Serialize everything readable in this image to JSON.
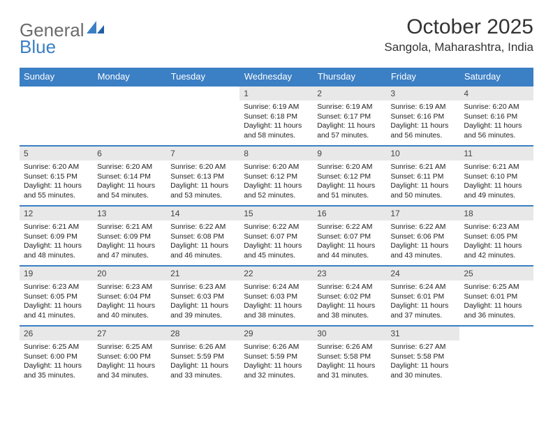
{
  "brand": {
    "part1": "General",
    "part2": "Blue"
  },
  "title": "October 2025",
  "location": "Sangola, Maharashtra, India",
  "colors": {
    "accent": "#3b7fc4",
    "header_bg": "#3b7fc4",
    "header_text": "#ffffff",
    "daynum_bg": "#e8e8e8",
    "row_border": "#3b7fc4",
    "text": "#222222",
    "background": "#ffffff"
  },
  "weekdays": [
    "Sunday",
    "Monday",
    "Tuesday",
    "Wednesday",
    "Thursday",
    "Friday",
    "Saturday"
  ],
  "calendar": {
    "type": "table",
    "columns": 7,
    "rows": 5,
    "font_size_body": 10.4,
    "font_size_daynum": 12
  },
  "weeks": [
    [
      {
        "empty": true
      },
      {
        "empty": true
      },
      {
        "empty": true
      },
      {
        "day": "1",
        "sunrise": "Sunrise: 6:19 AM",
        "sunset": "Sunset: 6:18 PM",
        "dl1": "Daylight: 11 hours",
        "dl2": "and 58 minutes."
      },
      {
        "day": "2",
        "sunrise": "Sunrise: 6:19 AM",
        "sunset": "Sunset: 6:17 PM",
        "dl1": "Daylight: 11 hours",
        "dl2": "and 57 minutes."
      },
      {
        "day": "3",
        "sunrise": "Sunrise: 6:19 AM",
        "sunset": "Sunset: 6:16 PM",
        "dl1": "Daylight: 11 hours",
        "dl2": "and 56 minutes."
      },
      {
        "day": "4",
        "sunrise": "Sunrise: 6:20 AM",
        "sunset": "Sunset: 6:16 PM",
        "dl1": "Daylight: 11 hours",
        "dl2": "and 56 minutes."
      }
    ],
    [
      {
        "day": "5",
        "sunrise": "Sunrise: 6:20 AM",
        "sunset": "Sunset: 6:15 PM",
        "dl1": "Daylight: 11 hours",
        "dl2": "and 55 minutes."
      },
      {
        "day": "6",
        "sunrise": "Sunrise: 6:20 AM",
        "sunset": "Sunset: 6:14 PM",
        "dl1": "Daylight: 11 hours",
        "dl2": "and 54 minutes."
      },
      {
        "day": "7",
        "sunrise": "Sunrise: 6:20 AM",
        "sunset": "Sunset: 6:13 PM",
        "dl1": "Daylight: 11 hours",
        "dl2": "and 53 minutes."
      },
      {
        "day": "8",
        "sunrise": "Sunrise: 6:20 AM",
        "sunset": "Sunset: 6:12 PM",
        "dl1": "Daylight: 11 hours",
        "dl2": "and 52 minutes."
      },
      {
        "day": "9",
        "sunrise": "Sunrise: 6:20 AM",
        "sunset": "Sunset: 6:12 PM",
        "dl1": "Daylight: 11 hours",
        "dl2": "and 51 minutes."
      },
      {
        "day": "10",
        "sunrise": "Sunrise: 6:21 AM",
        "sunset": "Sunset: 6:11 PM",
        "dl1": "Daylight: 11 hours",
        "dl2": "and 50 minutes."
      },
      {
        "day": "11",
        "sunrise": "Sunrise: 6:21 AM",
        "sunset": "Sunset: 6:10 PM",
        "dl1": "Daylight: 11 hours",
        "dl2": "and 49 minutes."
      }
    ],
    [
      {
        "day": "12",
        "sunrise": "Sunrise: 6:21 AM",
        "sunset": "Sunset: 6:09 PM",
        "dl1": "Daylight: 11 hours",
        "dl2": "and 48 minutes."
      },
      {
        "day": "13",
        "sunrise": "Sunrise: 6:21 AM",
        "sunset": "Sunset: 6:09 PM",
        "dl1": "Daylight: 11 hours",
        "dl2": "and 47 minutes."
      },
      {
        "day": "14",
        "sunrise": "Sunrise: 6:22 AM",
        "sunset": "Sunset: 6:08 PM",
        "dl1": "Daylight: 11 hours",
        "dl2": "and 46 minutes."
      },
      {
        "day": "15",
        "sunrise": "Sunrise: 6:22 AM",
        "sunset": "Sunset: 6:07 PM",
        "dl1": "Daylight: 11 hours",
        "dl2": "and 45 minutes."
      },
      {
        "day": "16",
        "sunrise": "Sunrise: 6:22 AM",
        "sunset": "Sunset: 6:07 PM",
        "dl1": "Daylight: 11 hours",
        "dl2": "and 44 minutes."
      },
      {
        "day": "17",
        "sunrise": "Sunrise: 6:22 AM",
        "sunset": "Sunset: 6:06 PM",
        "dl1": "Daylight: 11 hours",
        "dl2": "and 43 minutes."
      },
      {
        "day": "18",
        "sunrise": "Sunrise: 6:23 AM",
        "sunset": "Sunset: 6:05 PM",
        "dl1": "Daylight: 11 hours",
        "dl2": "and 42 minutes."
      }
    ],
    [
      {
        "day": "19",
        "sunrise": "Sunrise: 6:23 AM",
        "sunset": "Sunset: 6:05 PM",
        "dl1": "Daylight: 11 hours",
        "dl2": "and 41 minutes."
      },
      {
        "day": "20",
        "sunrise": "Sunrise: 6:23 AM",
        "sunset": "Sunset: 6:04 PM",
        "dl1": "Daylight: 11 hours",
        "dl2": "and 40 minutes."
      },
      {
        "day": "21",
        "sunrise": "Sunrise: 6:23 AM",
        "sunset": "Sunset: 6:03 PM",
        "dl1": "Daylight: 11 hours",
        "dl2": "and 39 minutes."
      },
      {
        "day": "22",
        "sunrise": "Sunrise: 6:24 AM",
        "sunset": "Sunset: 6:03 PM",
        "dl1": "Daylight: 11 hours",
        "dl2": "and 38 minutes."
      },
      {
        "day": "23",
        "sunrise": "Sunrise: 6:24 AM",
        "sunset": "Sunset: 6:02 PM",
        "dl1": "Daylight: 11 hours",
        "dl2": "and 38 minutes."
      },
      {
        "day": "24",
        "sunrise": "Sunrise: 6:24 AM",
        "sunset": "Sunset: 6:01 PM",
        "dl1": "Daylight: 11 hours",
        "dl2": "and 37 minutes."
      },
      {
        "day": "25",
        "sunrise": "Sunrise: 6:25 AM",
        "sunset": "Sunset: 6:01 PM",
        "dl1": "Daylight: 11 hours",
        "dl2": "and 36 minutes."
      }
    ],
    [
      {
        "day": "26",
        "sunrise": "Sunrise: 6:25 AM",
        "sunset": "Sunset: 6:00 PM",
        "dl1": "Daylight: 11 hours",
        "dl2": "and 35 minutes."
      },
      {
        "day": "27",
        "sunrise": "Sunrise: 6:25 AM",
        "sunset": "Sunset: 6:00 PM",
        "dl1": "Daylight: 11 hours",
        "dl2": "and 34 minutes."
      },
      {
        "day": "28",
        "sunrise": "Sunrise: 6:26 AM",
        "sunset": "Sunset: 5:59 PM",
        "dl1": "Daylight: 11 hours",
        "dl2": "and 33 minutes."
      },
      {
        "day": "29",
        "sunrise": "Sunrise: 6:26 AM",
        "sunset": "Sunset: 5:59 PM",
        "dl1": "Daylight: 11 hours",
        "dl2": "and 32 minutes."
      },
      {
        "day": "30",
        "sunrise": "Sunrise: 6:26 AM",
        "sunset": "Sunset: 5:58 PM",
        "dl1": "Daylight: 11 hours",
        "dl2": "and 31 minutes."
      },
      {
        "day": "31",
        "sunrise": "Sunrise: 6:27 AM",
        "sunset": "Sunset: 5:58 PM",
        "dl1": "Daylight: 11 hours",
        "dl2": "and 30 minutes."
      },
      {
        "empty": true
      }
    ]
  ]
}
